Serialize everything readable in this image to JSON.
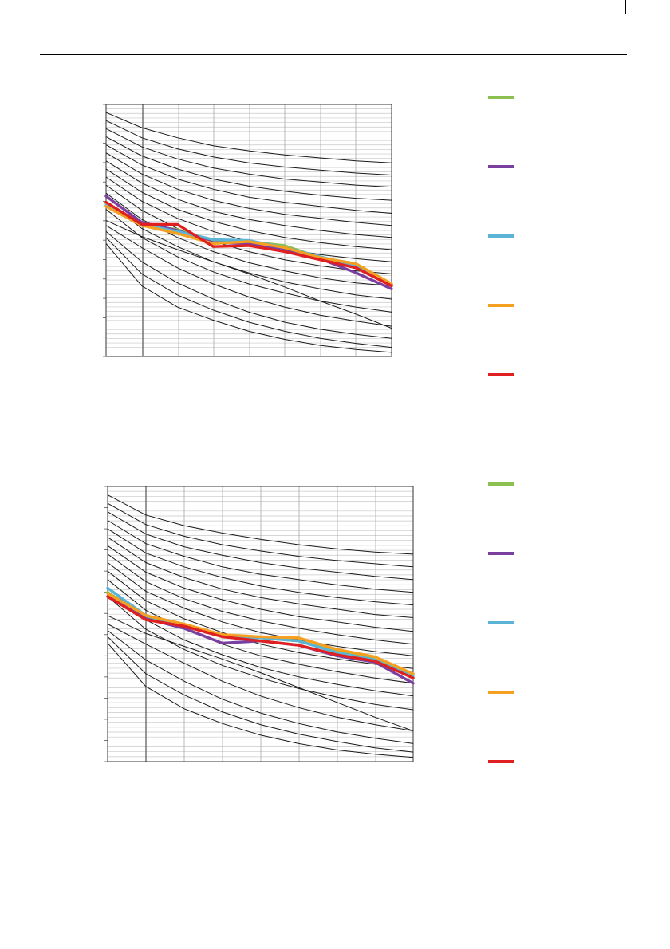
{
  "chart_data": [
    {
      "type": "line",
      "title": "",
      "xlabel": "",
      "ylabel": "",
      "x": [
        0,
        1,
        2,
        3,
        4,
        5,
        6,
        7,
        8
      ],
      "xlim": [
        0,
        8
      ],
      "ylim": [
        0,
        25
      ],
      "grid": true,
      "legend_placement": "right",
      "reference_curves": [
        [
          24.2,
          22.7,
          21.7,
          20.9,
          20.4,
          20.0,
          19.7,
          19.4,
          19.2
        ],
        [
          23.4,
          21.7,
          20.6,
          19.8,
          19.2,
          18.8,
          18.5,
          18.2,
          18.0
        ],
        [
          22.6,
          20.8,
          19.6,
          18.7,
          18.1,
          17.6,
          17.3,
          17.0,
          16.8
        ],
        [
          21.8,
          19.9,
          18.6,
          17.6,
          16.9,
          16.4,
          16.0,
          15.7,
          15.5
        ],
        [
          21.0,
          19.0,
          17.6,
          16.6,
          15.8,
          15.3,
          14.9,
          14.5,
          14.2
        ],
        [
          20.2,
          18.1,
          16.6,
          15.5,
          14.7,
          14.1,
          13.7,
          13.3,
          13.0
        ],
        [
          19.4,
          17.2,
          15.6,
          14.4,
          13.6,
          13.0,
          12.5,
          12.1,
          11.8
        ],
        [
          18.6,
          16.3,
          14.6,
          13.4,
          12.5,
          11.8,
          11.3,
          10.9,
          10.6
        ],
        [
          17.8,
          15.4,
          13.7,
          12.4,
          11.4,
          10.7,
          10.1,
          9.7,
          9.4
        ],
        [
          17.0,
          14.5,
          12.7,
          11.4,
          10.4,
          9.6,
          9.0,
          8.5,
          8.2
        ],
        [
          16.2,
          13.6,
          11.8,
          10.4,
          9.3,
          8.5,
          7.8,
          7.3,
          7.0
        ],
        [
          15.4,
          12.7,
          10.9,
          9.4,
          8.3,
          7.4,
          6.7,
          6.1,
          5.7
        ],
        [
          14.6,
          11.8,
          9.9,
          8.4,
          7.2,
          6.3,
          5.5,
          4.9,
          4.4
        ],
        [
          13.5,
          11.9,
          10.6,
          9.4,
          8.2,
          6.9,
          5.5,
          4.2,
          2.8
        ],
        [
          13.0,
          10.8,
          8.8,
          7.2,
          5.9,
          4.9,
          4.1,
          3.5,
          3.0
        ],
        [
          12.4,
          9.4,
          7.3,
          5.7,
          4.4,
          3.4,
          2.7,
          2.2,
          1.8
        ],
        [
          11.8,
          8.2,
          6.1,
          4.6,
          3.4,
          2.5,
          1.8,
          1.3,
          0.9
        ],
        [
          11.2,
          7.0,
          4.9,
          3.6,
          2.5,
          1.7,
          1.1,
          0.7,
          0.4
        ]
      ],
      "series": [
        {
          "color": "#8cc152",
          "values": [
            15.2,
            13.0,
            12.6,
            11.4,
            11.4,
            11.0,
            9.8,
            9.2,
            7.2
          ]
        },
        {
          "color": "#7b3fa0",
          "values": [
            15.9,
            13.3,
            12.5,
            11.3,
            11.2,
            10.6,
            9.7,
            8.3,
            6.7
          ]
        },
        {
          "color": "#5bb4d6",
          "values": [
            15.0,
            13.1,
            12.4,
            11.6,
            11.5,
            10.8,
            9.9,
            9.0,
            7.0
          ]
        },
        {
          "color": "#f5a020",
          "values": [
            14.9,
            13.0,
            12.2,
            11.2,
            11.4,
            10.8,
            9.8,
            9.2,
            7.2
          ]
        },
        {
          "color": "#e02020",
          "values": [
            15.3,
            13.1,
            13.1,
            10.9,
            11.0,
            10.4,
            9.6,
            8.8,
            7.0
          ]
        }
      ]
    },
    {
      "type": "line",
      "title": "",
      "xlabel": "",
      "ylabel": "",
      "x": [
        0,
        1,
        2,
        3,
        4,
        5,
        6,
        7,
        8
      ],
      "xlim": [
        0,
        8
      ],
      "ylim": [
        0,
        26
      ],
      "grid": true,
      "legend_placement": "right",
      "reference_curves": [
        [
          25.2,
          23.3,
          22.3,
          21.6,
          21.0,
          20.5,
          20.1,
          19.8,
          19.6
        ],
        [
          24.4,
          22.4,
          21.3,
          20.5,
          19.9,
          19.4,
          19.0,
          18.7,
          18.4
        ],
        [
          23.6,
          21.5,
          20.3,
          19.5,
          18.8,
          18.3,
          17.9,
          17.5,
          17.2
        ],
        [
          22.8,
          20.6,
          19.4,
          18.4,
          17.7,
          17.2,
          16.7,
          16.3,
          16.0
        ],
        [
          22.0,
          19.7,
          18.4,
          17.4,
          16.6,
          16.0,
          15.5,
          15.1,
          14.8
        ],
        [
          21.2,
          18.8,
          17.4,
          16.3,
          15.5,
          14.9,
          14.4,
          13.9,
          13.6
        ],
        [
          20.4,
          17.9,
          16.4,
          15.3,
          14.4,
          13.7,
          13.2,
          12.7,
          12.3
        ],
        [
          19.6,
          17.0,
          15.4,
          14.2,
          13.3,
          12.6,
          12.0,
          11.5,
          11.1
        ],
        [
          18.8,
          16.1,
          14.5,
          13.2,
          12.2,
          11.5,
          10.9,
          10.4,
          10.0
        ],
        [
          18.0,
          15.2,
          13.5,
          12.2,
          11.1,
          10.3,
          9.7,
          9.2,
          8.8
        ],
        [
          17.2,
          14.3,
          12.5,
          11.1,
          10.0,
          9.2,
          8.5,
          7.9,
          7.4
        ],
        [
          16.4,
          13.4,
          11.5,
          10.1,
          8.9,
          8.0,
          7.3,
          6.7,
          6.2
        ],
        [
          15.6,
          12.5,
          10.6,
          9.1,
          7.9,
          6.9,
          6.1,
          5.4,
          4.9
        ],
        [
          13.8,
          12.1,
          10.9,
          9.7,
          8.4,
          7.0,
          5.6,
          4.2,
          2.9
        ],
        [
          13.0,
          11.1,
          9.3,
          7.6,
          6.2,
          5.1,
          4.2,
          3.5,
          2.9
        ],
        [
          12.4,
          9.6,
          7.6,
          5.9,
          4.6,
          3.6,
          2.8,
          2.2,
          1.7
        ],
        [
          11.8,
          8.3,
          6.3,
          4.7,
          3.5,
          2.6,
          1.9,
          1.3,
          0.9
        ],
        [
          11.2,
          7.1,
          5.0,
          3.6,
          2.5,
          1.7,
          1.1,
          0.7,
          0.4
        ]
      ],
      "series": [
        {
          "color": "#8cc152",
          "values": [
            16.0,
            13.6,
            12.8,
            11.9,
            11.7,
            11.4,
            10.4,
            9.7,
            8.2
          ]
        },
        {
          "color": "#7b3fa0",
          "values": [
            15.6,
            13.5,
            12.6,
            11.2,
            11.4,
            11.0,
            10.0,
            9.4,
            7.4
          ]
        },
        {
          "color": "#5bb4d6",
          "values": [
            16.4,
            13.8,
            12.9,
            11.8,
            11.7,
            11.4,
            10.3,
            9.6,
            8.0
          ]
        },
        {
          "color": "#f5a020",
          "values": [
            15.9,
            13.8,
            13.0,
            12.0,
            11.8,
            11.7,
            10.6,
            9.9,
            8.3
          ]
        },
        {
          "color": "#e02020",
          "values": [
            15.6,
            13.4,
            12.8,
            11.8,
            11.4,
            11.0,
            10.1,
            9.5,
            7.9
          ]
        }
      ]
    }
  ]
}
